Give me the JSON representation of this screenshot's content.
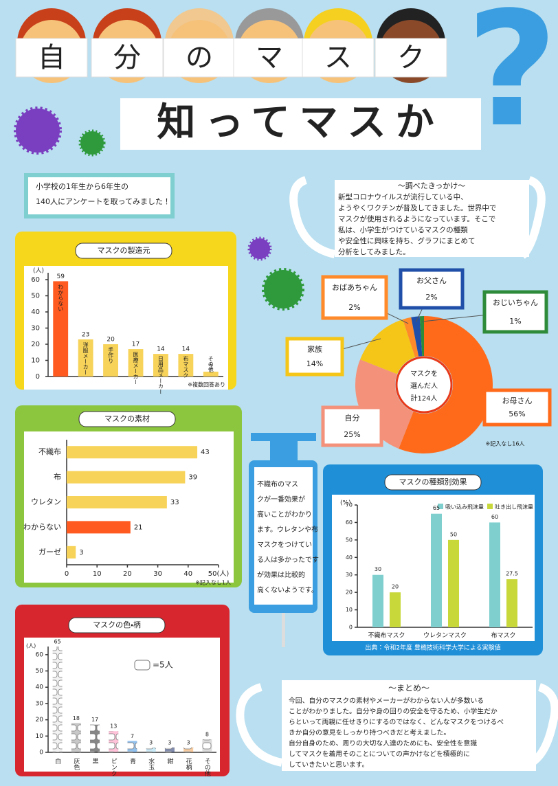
{
  "header": {
    "title_chars": [
      "自",
      "分",
      "の",
      "マ",
      "ス",
      "ク"
    ],
    "subtitle": "知ってマスか",
    "question_mark": "?"
  },
  "intro": {
    "lines": [
      "小学校の1年生から6年生の",
      "140人にアンケートを取ってみました！"
    ]
  },
  "motivation": {
    "title": "〜調べたきっかけ〜",
    "lines": [
      "新型コロナウイルスが流行している中、",
      "ようやくワクチンが普及してきました。世界中で",
      "マスクが使用されるようになっています。そこで",
      "私は、小学生がつけているマスクの種類",
      "や安全性に興味を持ち、グラフにまとめて",
      "分析をしてみました。"
    ]
  },
  "finding": {
    "lines": [
      "不織布のマス",
      "クが一番効果が",
      "高いことがわかり",
      "ます。ウレタンや布",
      "マスクをつけてい",
      "る人は多かったです",
      "が効果は比較的",
      "高くないようです。"
    ]
  },
  "summary": {
    "title": "〜まとめ〜",
    "lines": [
      "今回、自分のマスクの素材やメーカーがわからない人が多数いる",
      "ことがわかりました。自分や身の回りの安全を守るため、小学生だか",
      "らといって両親に任せきりにするのではなく、どんなマスクをつけるべ",
      "きか自分の意見をしっかり持つべきだと考えました。",
      "自分自身のため、周りの大切な人達のためにも、安全性を意識",
      "してマスクを着用そのことについての声かけなどを積極的に",
      "していきたいと思います。"
    ]
  },
  "chart_data": [
    {
      "type": "bar",
      "title": "マスクの製造元",
      "y_label": "(人)",
      "categories": [
        "わからない",
        "洋服メーカー",
        "手作り",
        "医療メーカー",
        "日用品メーカー",
        "布マスク",
        "その他"
      ],
      "values": [
        59,
        23,
        20,
        17,
        14,
        14,
        3
      ],
      "colors": [
        "#ff5a1f",
        "#f7d35a",
        "#f7d35a",
        "#f7d35a",
        "#f7d35a",
        "#f7d35a",
        "#f7d35a"
      ],
      "ylim": [
        0,
        60
      ],
      "yticks": [
        0,
        10,
        20,
        30,
        40,
        50,
        60
      ],
      "note": "※複数回答あり"
    },
    {
      "type": "donut",
      "center_label": [
        "マスクを",
        "選んだ人",
        "計124人"
      ],
      "categories": [
        "お母さん",
        "自分",
        "家族",
        "おばあちゃん",
        "お父さん",
        "おじいちゃん"
      ],
      "values": [
        56,
        25,
        14,
        2,
        2,
        1
      ],
      "value_labels": [
        "56%",
        "25%",
        "14%",
        "2%",
        "2%",
        "1%"
      ],
      "colors": [
        "#ff6a1a",
        "#f4917a",
        "#f5c518",
        "#ff8a2a",
        "#1f4fa8",
        "#2e8b3a"
      ],
      "note": "※記入なし16人"
    },
    {
      "type": "hbar",
      "title": "マスクの素材",
      "categories": [
        "不織布",
        "布",
        "ウレタン",
        "わからない",
        "ガーゼ"
      ],
      "values": [
        43,
        39,
        33,
        21,
        3
      ],
      "colors": [
        "#f7d35a",
        "#f7d35a",
        "#f7d35a",
        "#ff5a1f",
        "#f7d35a"
      ],
      "xlim": [
        0,
        50
      ],
      "xticks": [
        0,
        10,
        20,
        30,
        40,
        {
          "value": 50,
          "label": "50(人)"
        }
      ],
      "note": "※記入なし1人"
    },
    {
      "type": "grouped_bar",
      "title": "マスクの種類別効果",
      "y_label": "(%)",
      "categories": [
        "不織布マスク",
        "ウレタンマスク",
        "布マスク"
      ],
      "series": [
        {
          "name": "吸い込み飛沫量",
          "color": "#7fcfcf",
          "values": [
            30,
            65,
            60
          ]
        },
        {
          "name": "吐き出し飛沫量",
          "color": "#c8d83a",
          "values": [
            20,
            50,
            27.5
          ]
        }
      ],
      "ylim": [
        0,
        70
      ],
      "yticks": [
        0,
        10,
        20,
        30,
        40,
        50,
        60,
        70
      ],
      "source": "出典：令和2年度 豊橋技術科学大学による実験値"
    },
    {
      "type": "pictograph",
      "title": "マスクの色・柄",
      "y_label": "(人)",
      "categories": [
        "白",
        "灰色",
        "黒",
        "ピンク",
        "青",
        "水玉",
        "紺",
        "花柄",
        "その他"
      ],
      "values": [
        65,
        18,
        17,
        13,
        7,
        3,
        3,
        3,
        8
      ],
      "colors": [
        "#e8e8e8",
        "#9a9a9a",
        "#222222",
        "#ff8fb8",
        "#3a8ee0",
        "#9fd8f0",
        "#1c2e6a",
        "#f0a050",
        "#c0c0c0"
      ],
      "ylim": [
        0,
        65
      ],
      "yticks": [
        0,
        10,
        20,
        30,
        40,
        50,
        60
      ],
      "icon_label": "=5人"
    }
  ]
}
